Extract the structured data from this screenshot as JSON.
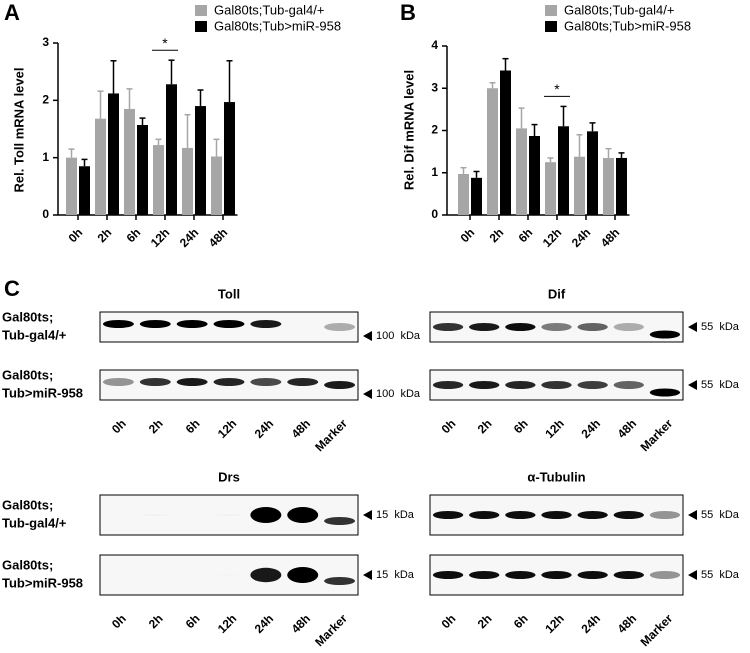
{
  "chart_data": [
    {
      "type": "bar",
      "label": "A",
      "y_label": "Rel. Toll mRNA level",
      "categories": [
        "0h",
        "2h",
        "6h",
        "12h",
        "24h",
        "48h"
      ],
      "series": [
        {
          "name": "Gal80ts;Tub-gal4/+",
          "color": "#a6a6a6",
          "values": [
            1.0,
            1.68,
            1.85,
            1.22,
            1.17,
            1.02
          ],
          "errors": [
            0.15,
            0.48,
            0.35,
            0.1,
            0.58,
            0.3
          ]
        },
        {
          "name": "Gal80ts;Tub>miR-958",
          "color": "#000000",
          "values": [
            0.85,
            2.12,
            1.57,
            2.28,
            1.9,
            1.97
          ],
          "errors": [
            0.12,
            0.57,
            0.12,
            0.42,
            0.28,
            0.72
          ]
        }
      ],
      "ylim": [
        0,
        3
      ],
      "yticks": [
        0,
        1,
        2,
        3
      ],
      "annotation": {
        "text": "*",
        "x": "12h"
      }
    },
    {
      "type": "bar",
      "label": "B",
      "y_label": "Rel. Dif mRNA level",
      "categories": [
        "0h",
        "2h",
        "6h",
        "12h",
        "24h",
        "48h"
      ],
      "series": [
        {
          "name": "Gal80ts;Tub-gal4/+",
          "color": "#a6a6a6",
          "values": [
            0.97,
            3.0,
            2.05,
            1.25,
            1.38,
            1.35
          ],
          "errors": [
            0.15,
            0.13,
            0.48,
            0.1,
            0.52,
            0.22
          ]
        },
        {
          "name": "Gal80ts;Tub>miR-958",
          "color": "#000000",
          "values": [
            0.88,
            3.42,
            1.87,
            2.1,
            1.98,
            1.35
          ],
          "errors": [
            0.15,
            0.28,
            0.27,
            0.47,
            0.2,
            0.12
          ]
        }
      ],
      "ylim": [
        0,
        4
      ],
      "yticks": [
        0,
        1,
        2,
        3,
        4
      ],
      "annotation": {
        "text": "*",
        "x": "12h"
      }
    }
  ],
  "blots": {
    "label": "C",
    "row_labels": [
      [
        "Gal80ts;",
        "Tub-gal4/+"
      ],
      [
        "Gal80ts;",
        "Tub>miR-958"
      ]
    ],
    "lanes": [
      "0h",
      "2h",
      "6h",
      "12h",
      "24h",
      "48h",
      "Marker"
    ],
    "panels": [
      {
        "title": "Toll",
        "size": "100  kDa"
      },
      {
        "title": "Dif",
        "size": "55  kDa"
      },
      {
        "title": "Drs",
        "size": "15  kDa"
      },
      {
        "title": "α-Tubulin",
        "size": "55  kDa"
      }
    ]
  }
}
